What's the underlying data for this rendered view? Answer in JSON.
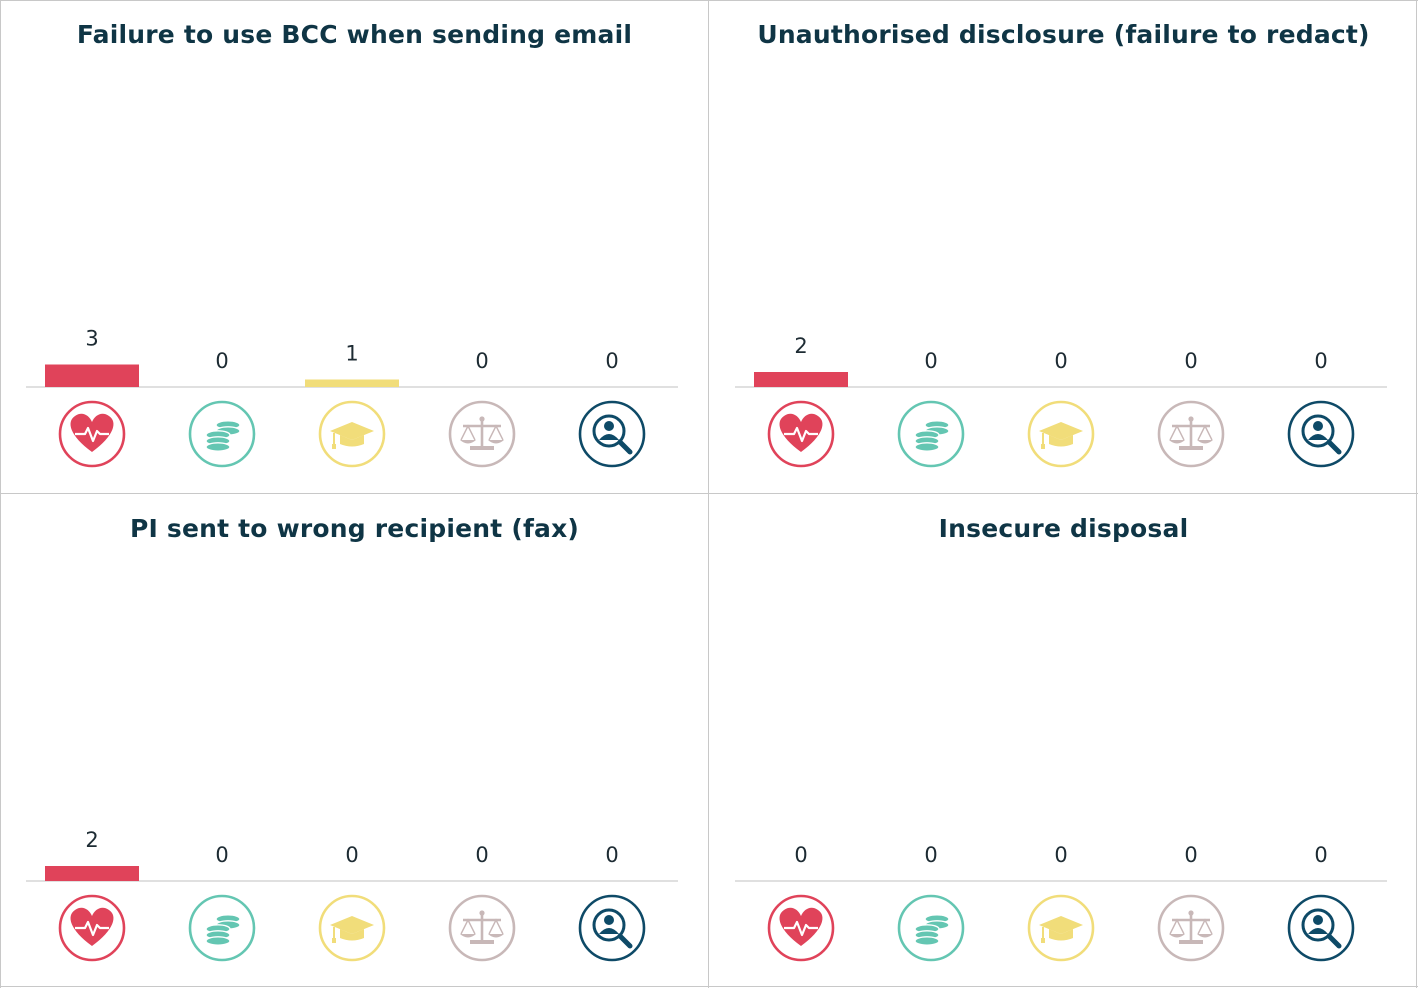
{
  "colors": {
    "health": "#e0435a",
    "finance": "#64c6b2",
    "education": "#f1dd7a",
    "legal": "#c8b8b8",
    "recruitment": "#0e4a67",
    "baseline": "#d6d6d6",
    "divider": "#c8c8c8"
  },
  "icons": [
    "heart-pulse-icon",
    "coins-icon",
    "graduation-cap-icon",
    "scales-icon",
    "person-search-icon"
  ],
  "sectors": [
    "health",
    "finance",
    "education",
    "legal",
    "recruitment"
  ],
  "chart_data": [
    {
      "type": "bar",
      "title": "Failure to use BCC when sending email",
      "categories": [
        "health",
        "finance",
        "education",
        "legal",
        "recruitment"
      ],
      "values": [
        3,
        0,
        1,
        0,
        0
      ]
    },
    {
      "type": "bar",
      "title": "Unauthorised disclosure (failure to redact)",
      "categories": [
        "health",
        "finance",
        "education",
        "legal",
        "recruitment"
      ],
      "values": [
        2,
        0,
        0,
        0,
        0
      ]
    },
    {
      "type": "bar",
      "title": "PI sent to wrong recipient (fax)",
      "categories": [
        "health",
        "finance",
        "education",
        "legal",
        "recruitment"
      ],
      "values": [
        2,
        0,
        0,
        0,
        0
      ]
    },
    {
      "type": "bar",
      "title": "Insecure disposal",
      "categories": [
        "health",
        "finance",
        "education",
        "legal",
        "recruitment"
      ],
      "values": [
        0,
        0,
        0,
        0,
        0
      ]
    }
  ]
}
